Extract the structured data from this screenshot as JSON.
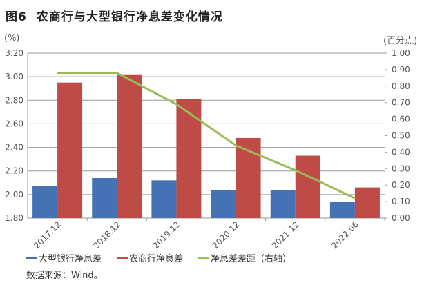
{
  "title": {
    "figure_no": "图6",
    "text": "农商行与大型银行净息差变化情况"
  },
  "source": "数据来源：Wind。",
  "chart_data": {
    "type": "bar",
    "title": "农商行与大型银行净息差变化情况",
    "categories": [
      "2017.12",
      "2018.12",
      "2019.12",
      "2020.12",
      "2021.12",
      "2022.06"
    ],
    "left_axis": {
      "unit": "(%)",
      "ylim": [
        1.8,
        3.2
      ],
      "ticks": [
        "1.80",
        "2.00",
        "2.20",
        "2.40",
        "2.60",
        "2.80",
        "3.00",
        "3.20"
      ]
    },
    "right_axis": {
      "unit": "(百分点)",
      "ylim": [
        0.0,
        1.0
      ],
      "ticks": [
        "0.00",
        "0.10",
        "0.20",
        "0.30",
        "0.40",
        "0.50",
        "0.60",
        "0.70",
        "0.80",
        "0.90",
        "1.00"
      ]
    },
    "grid": true,
    "legend_position": "bottom",
    "series": [
      {
        "name": "大型银行净息差",
        "type": "bar",
        "axis": "left",
        "color": "#4472b4",
        "values": [
          2.07,
          2.14,
          2.12,
          2.04,
          2.04,
          1.94
        ]
      },
      {
        "name": "农商行净息差",
        "type": "bar",
        "axis": "left",
        "color": "#bf4b47",
        "values": [
          2.95,
          3.02,
          2.81,
          2.48,
          2.33,
          2.06
        ]
      },
      {
        "name": "净息差差距（右轴）",
        "type": "line",
        "axis": "right",
        "color": "#9bbb59",
        "values": [
          0.88,
          0.88,
          0.69,
          0.44,
          0.29,
          0.12
        ]
      }
    ]
  }
}
